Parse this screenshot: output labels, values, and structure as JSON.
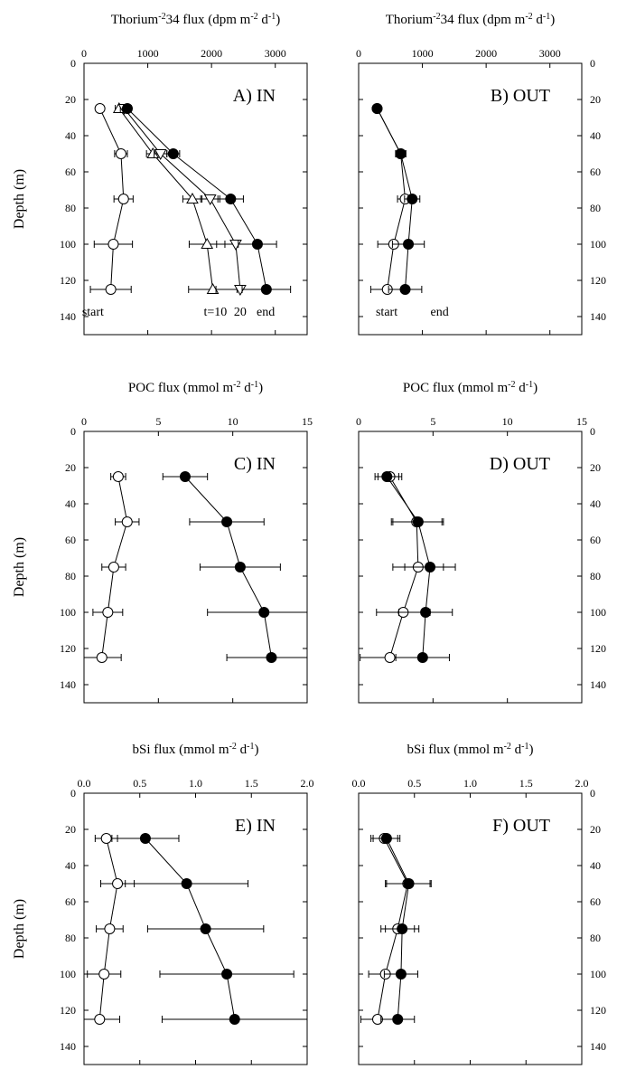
{
  "figure": {
    "ylabel": "Depth (m)"
  },
  "chart_data": [
    {
      "id": "A",
      "type": "scatter",
      "title": "Thorium-234 flux (dpm m-2 d-1)",
      "panel_label": "A) IN",
      "xlim": [
        0,
        3500
      ],
      "ylim": [
        0,
        150
      ],
      "y_inverted": true,
      "xticks": [
        0,
        1000,
        2000,
        3000
      ],
      "yticks": [
        0,
        20,
        40,
        60,
        80,
        100,
        120,
        140
      ],
      "ylabel": "Depth (m)",
      "y_axis_side": "left",
      "series": [
        {
          "name": "start",
          "marker": "open-circle",
          "x": [
            250,
            580,
            620,
            460,
            420
          ],
          "y": [
            25,
            50,
            75,
            100,
            125
          ],
          "err": [
            0,
            100,
            150,
            300,
            320
          ]
        },
        {
          "name": "t=10",
          "marker": "open-triangle-up",
          "x": [
            550,
            1080,
            1700,
            1930,
            2020
          ],
          "y": [
            25,
            50,
            75,
            100,
            125
          ],
          "err": [
            60,
            100,
            150,
            280,
            380
          ]
        },
        {
          "name": "20",
          "marker": "open-triangle-down",
          "x": [
            630,
            1200,
            1980,
            2380,
            2450
          ],
          "y": [
            25,
            50,
            75,
            100,
            125
          ],
          "err": [
            60,
            100,
            150,
            300,
            380
          ]
        },
        {
          "name": "end",
          "marker": "filled-circle",
          "x": [
            680,
            1400,
            2300,
            2720,
            2860
          ],
          "y": [
            25,
            50,
            75,
            100,
            125
          ],
          "err": [
            60,
            100,
            200,
            300,
            380
          ]
        }
      ],
      "annotations": [
        "start",
        "t=10",
        "20",
        "end"
      ]
    },
    {
      "id": "B",
      "type": "scatter",
      "title": "Thorium-234 flux (dpm m-2 d-1)",
      "panel_label": "B) OUT",
      "xlim": [
        0,
        3500
      ],
      "ylim": [
        0,
        150
      ],
      "y_inverted": true,
      "xticks": [
        0,
        1000,
        2000,
        3000
      ],
      "yticks": [
        0,
        20,
        40,
        60,
        80,
        100,
        120,
        140
      ],
      "ylabel": "",
      "y_axis_side": "right",
      "series": [
        {
          "name": "start",
          "marker": "open-circle",
          "x": [
            290,
            660,
            730,
            550,
            450
          ],
          "y": [
            25,
            50,
            75,
            100,
            125
          ],
          "err": [
            50,
            80,
            120,
            250,
            260
          ]
        },
        {
          "name": "end",
          "marker": "filled-circle",
          "x": [
            290,
            660,
            840,
            780,
            730
          ],
          "y": [
            25,
            50,
            75,
            100,
            125
          ],
          "err": [
            50,
            80,
            120,
            250,
            260
          ]
        }
      ],
      "annotations": [
        "start",
        "end"
      ]
    },
    {
      "id": "C",
      "type": "scatter",
      "title": "POC flux (mmol m-2 d-1)",
      "panel_label": "C) IN",
      "xlim": [
        0,
        15
      ],
      "ylim": [
        0,
        150
      ],
      "y_inverted": true,
      "xticks": [
        0,
        5,
        10,
        15
      ],
      "yticks": [
        0,
        20,
        40,
        60,
        80,
        100,
        120,
        140
      ],
      "ylabel": "Depth (m)",
      "y_axis_side": "left",
      "series": [
        {
          "name": "start",
          "marker": "open-circle",
          "x": [
            2.3,
            2.9,
            2.0,
            1.6,
            1.2
          ],
          "y": [
            25,
            50,
            75,
            100,
            125
          ],
          "err": [
            0.5,
            0.8,
            0.8,
            1.0,
            1.3
          ]
        },
        {
          "name": "end",
          "marker": "filled-circle",
          "x": [
            6.8,
            9.6,
            10.5,
            12.1,
            12.6
          ],
          "y": [
            25,
            50,
            75,
            100,
            125
          ],
          "err": [
            1.5,
            2.5,
            2.7,
            3.8,
            3.0
          ]
        }
      ]
    },
    {
      "id": "D",
      "type": "scatter",
      "title": "POC flux (mmol m-2 d-1)",
      "panel_label": "D) OUT",
      "xlim": [
        0,
        15
      ],
      "ylim": [
        0,
        150
      ],
      "y_inverted": true,
      "xticks": [
        0,
        5,
        10,
        15
      ],
      "yticks": [
        0,
        20,
        40,
        60,
        80,
        100,
        120,
        140
      ],
      "ylabel": "",
      "y_axis_side": "right",
      "series": [
        {
          "name": "start",
          "marker": "open-circle",
          "x": [
            2.1,
            3.9,
            4.0,
            3.0,
            2.1
          ],
          "y": [
            25,
            50,
            75,
            100,
            125
          ],
          "err": [
            0.8,
            1.7,
            1.7,
            1.8,
            2.0
          ]
        },
        {
          "name": "end",
          "marker": "filled-circle",
          "x": [
            1.9,
            4.0,
            4.8,
            4.5,
            4.3
          ],
          "y": [
            25,
            50,
            75,
            100,
            125
          ],
          "err": [
            0.8,
            1.7,
            1.7,
            1.8,
            1.8
          ]
        }
      ]
    },
    {
      "id": "E",
      "type": "scatter",
      "title": "bSi flux (mmol m-2 d-1)",
      "panel_label": "E) IN",
      "xlim": [
        0,
        2
      ],
      "ylim": [
        0,
        150
      ],
      "y_inverted": true,
      "xticks": [
        0.0,
        0.5,
        1.0,
        1.5,
        2.0
      ],
      "yticks": [
        0,
        20,
        40,
        60,
        80,
        100,
        120,
        140
      ],
      "ylabel": "Depth (m)",
      "y_axis_side": "left",
      "series": [
        {
          "name": "start",
          "marker": "open-circle",
          "x": [
            0.2,
            0.3,
            0.23,
            0.18,
            0.14
          ],
          "y": [
            25,
            50,
            75,
            100,
            125
          ],
          "err": [
            0.1,
            0.15,
            0.12,
            0.15,
            0.18
          ]
        },
        {
          "name": "end",
          "marker": "filled-circle",
          "x": [
            0.55,
            0.92,
            1.09,
            1.28,
            1.35
          ],
          "y": [
            25,
            50,
            75,
            100,
            125
          ],
          "err": [
            0.3,
            0.55,
            0.52,
            0.6,
            0.65
          ]
        }
      ]
    },
    {
      "id": "F",
      "type": "scatter",
      "title": "bSi flux (mmol m-2 d-1)",
      "panel_label": "F) OUT",
      "xlim": [
        0,
        2
      ],
      "ylim": [
        0,
        150
      ],
      "y_inverted": true,
      "xticks": [
        0.0,
        0.5,
        1.0,
        1.5,
        2.0
      ],
      "yticks": [
        0,
        20,
        40,
        60,
        80,
        100,
        120,
        140
      ],
      "ylabel": "",
      "y_axis_side": "right",
      "series": [
        {
          "name": "start",
          "marker": "open-circle",
          "x": [
            0.23,
            0.44,
            0.35,
            0.24,
            0.17
          ],
          "y": [
            25,
            50,
            75,
            100,
            125
          ],
          "err": [
            0.12,
            0.2,
            0.15,
            0.15,
            0.15
          ]
        },
        {
          "name": "end",
          "marker": "filled-circle",
          "x": [
            0.25,
            0.45,
            0.39,
            0.38,
            0.35
          ],
          "y": [
            25,
            50,
            75,
            100,
            125
          ],
          "err": [
            0.12,
            0.2,
            0.15,
            0.15,
            0.15
          ]
        }
      ]
    }
  ]
}
